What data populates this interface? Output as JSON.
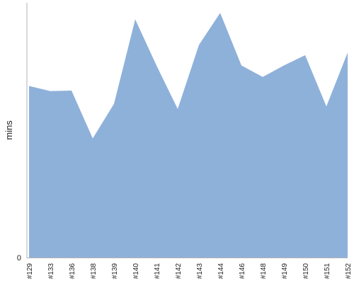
{
  "chart_data": {
    "type": "area",
    "title": "",
    "xlabel": "",
    "ylabel": "mins",
    "categories": [
      "#129",
      "#133",
      "#136",
      "#138",
      "#139",
      "#140",
      "#141",
      "#142",
      "#143",
      "#144",
      "#146",
      "#148",
      "#149",
      "#150",
      "#151",
      "#152"
    ],
    "series": [
      {
        "values": [
          67,
          65,
          65.2,
          46.5,
          60,
          93,
          75,
          58,
          83,
          95.5,
          75,
          70.5,
          75,
          79,
          59,
          80
        ]
      }
    ],
    "ylim": [
      0,
      100
    ],
    "y_ticks": [
      "0"
    ],
    "grid": false,
    "legend": "none",
    "colors": {
      "area": "#8eb1da",
      "axis": "#b0b0b0",
      "text": "#222222"
    }
  }
}
